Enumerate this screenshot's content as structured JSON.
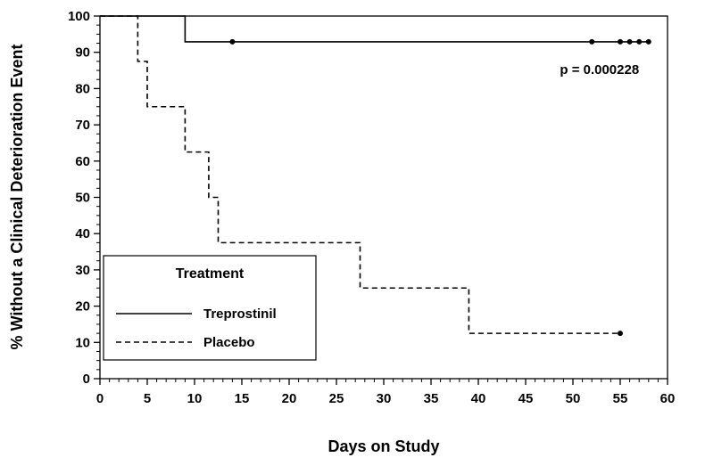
{
  "chart_data": {
    "type": "line",
    "subtype": "kaplan-meier-step",
    "title": "",
    "xlabel": "Days on Study",
    "ylabel": "% Without a Clinical Deterioration Event",
    "xlim": [
      0,
      60
    ],
    "ylim": [
      0,
      100
    ],
    "xticks": [
      0,
      5,
      10,
      15,
      20,
      25,
      30,
      35,
      40,
      45,
      50,
      55,
      60
    ],
    "yticks": [
      0,
      10,
      20,
      30,
      40,
      50,
      60,
      70,
      80,
      90,
      100
    ],
    "grid": false,
    "line_color": "#000000",
    "annotation": {
      "text": "p = 0.000228",
      "x": 57,
      "y": 84,
      "anchor": "end"
    },
    "legend": {
      "title": "Treatment",
      "position": "lower-left"
    },
    "series": [
      {
        "name": "Treprostinil",
        "line_style": "solid",
        "step_points": [
          [
            0,
            100
          ],
          [
            9,
            100
          ],
          [
            9,
            92.9
          ],
          [
            58,
            92.9
          ]
        ],
        "censor_points": [
          [
            14,
            92.9
          ],
          [
            52,
            92.9
          ],
          [
            55,
            92.9
          ],
          [
            56,
            92.9
          ],
          [
            57,
            92.9
          ],
          [
            58,
            92.9
          ]
        ]
      },
      {
        "name": "Placebo",
        "line_style": "dashed",
        "step_points": [
          [
            0,
            100
          ],
          [
            4,
            100
          ],
          [
            4,
            87.5
          ],
          [
            5,
            87.5
          ],
          [
            5,
            75
          ],
          [
            9,
            75
          ],
          [
            9,
            62.5
          ],
          [
            11.5,
            62.5
          ],
          [
            11.5,
            50
          ],
          [
            12.5,
            50
          ],
          [
            12.5,
            37.5
          ],
          [
            27.5,
            37.5
          ],
          [
            27.5,
            25
          ],
          [
            39,
            25
          ],
          [
            39,
            12.5
          ],
          [
            55,
            12.5
          ]
        ],
        "censor_points": [
          [
            55,
            12.5
          ]
        ]
      }
    ]
  }
}
